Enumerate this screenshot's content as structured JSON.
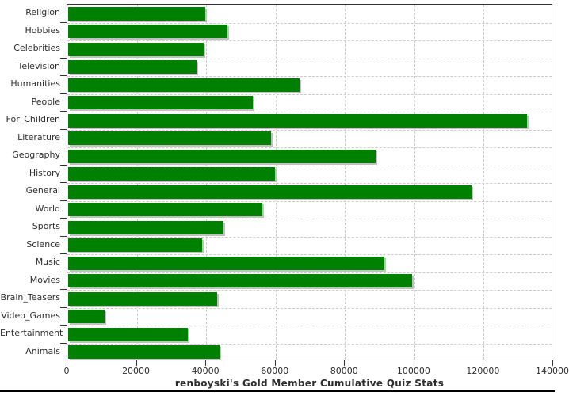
{
  "chart_data": {
    "type": "bar",
    "orientation": "horizontal",
    "title": "renboyski's Gold Member Cumulative Quiz Stats",
    "categories": [
      "Religion",
      "Hobbies",
      "Celebrities",
      "Television",
      "Humanities",
      "People",
      "For_Children",
      "Literature",
      "Geography",
      "History",
      "General",
      "World",
      "Sports",
      "Science",
      "Music",
      "Movies",
      "Brain_Teasers",
      "Video_Games",
      "Entertainment",
      "Animals"
    ],
    "values": [
      39500,
      45800,
      39000,
      37100,
      66800,
      53300,
      132300,
      58500,
      88700,
      59500,
      116300,
      56000,
      44700,
      38500,
      91100,
      99200,
      42900,
      10500,
      34400,
      43600
    ],
    "xlim": [
      0,
      140000
    ],
    "x_ticks": [
      0,
      20000,
      40000,
      60000,
      80000,
      100000,
      120000,
      140000
    ],
    "x_tick_labels": [
      "0",
      "20000",
      "40000",
      "60000",
      "80000",
      "100000",
      "120000",
      "140000"
    ],
    "grid": true,
    "legend": "none",
    "colors": {
      "bar": "#008000",
      "bar_shadow": "#c0c0c0",
      "gridline": "#cccccc",
      "axis": "#333333",
      "text": "#2e2e2e"
    }
  }
}
